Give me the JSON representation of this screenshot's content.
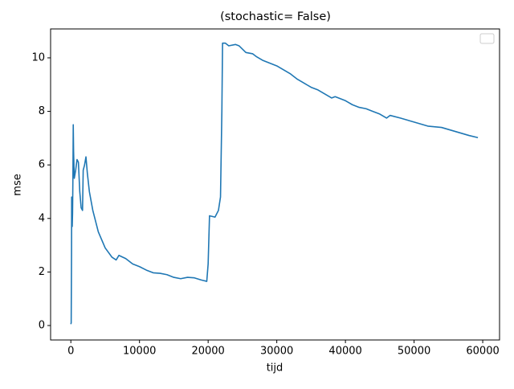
{
  "chart_data": {
    "type": "line",
    "title": "(stochastic= False)",
    "x_label": "tijd",
    "y_label": "mse",
    "color": "#1f77b4",
    "grid": false,
    "x": [
      0,
      50,
      100,
      120,
      200,
      250,
      300,
      350,
      400,
      500,
      700,
      900,
      1100,
      1300,
      1500,
      1700,
      1800,
      2000,
      2200,
      2400,
      2700,
      3200,
      4000,
      5000,
      6000,
      6600,
      7000,
      8000,
      9000,
      10000,
      11000,
      12000,
      13000,
      14000,
      15000,
      16000,
      17000,
      18000,
      19000,
      19800,
      20000,
      20200,
      21000,
      21500,
      21800,
      22000,
      22100,
      22500,
      23000,
      24000,
      24500,
      25500,
      26500,
      27000,
      28000,
      29000,
      30000,
      31000,
      32000,
      33000,
      34000,
      35000,
      36000,
      37000,
      38000,
      38500,
      40000,
      41000,
      42000,
      43000,
      44000,
      45000,
      46000,
      46500,
      48000,
      50000,
      52000,
      54000,
      56000,
      58000,
      59300
    ],
    "values": [
      0.05,
      0.1,
      2.7,
      4.8,
      3.7,
      4.2,
      5.5,
      7.5,
      6.5,
      5.5,
      5.8,
      6.2,
      6.1,
      5.0,
      4.4,
      4.3,
      5.8,
      6.0,
      6.3,
      5.7,
      5.0,
      4.3,
      3.5,
      2.9,
      2.55,
      2.45,
      2.62,
      2.5,
      2.3,
      2.2,
      2.07,
      1.97,
      1.95,
      1.9,
      1.8,
      1.75,
      1.8,
      1.78,
      1.7,
      1.65,
      2.3,
      4.1,
      4.05,
      4.3,
      4.8,
      8.0,
      10.55,
      10.55,
      10.45,
      10.5,
      10.45,
      10.2,
      10.15,
      10.05,
      9.9,
      9.8,
      9.7,
      9.55,
      9.4,
      9.2,
      9.05,
      8.9,
      8.8,
      8.65,
      8.5,
      8.55,
      8.4,
      8.25,
      8.15,
      8.1,
      8.0,
      7.9,
      7.75,
      7.85,
      7.75,
      7.6,
      7.45,
      7.4,
      7.25,
      7.1,
      7.02
    ],
    "xlim": [
      -2950,
      62450
    ],
    "ylim": [
      -0.54,
      11.08
    ],
    "xticks": [
      0,
      10000,
      20000,
      30000,
      40000,
      50000,
      60000
    ],
    "yticks": [
      0,
      2,
      4,
      6,
      8,
      10
    ]
  }
}
